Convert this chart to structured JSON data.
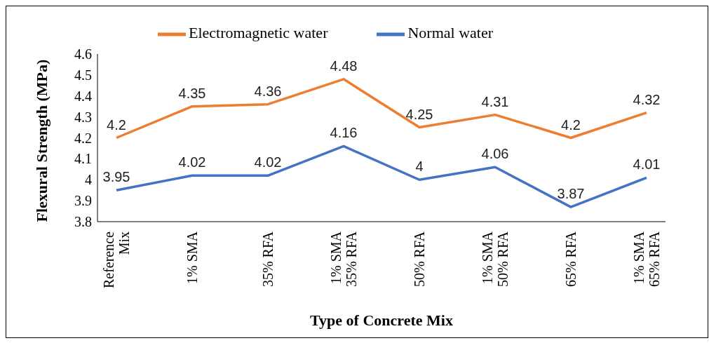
{
  "chart_data": {
    "type": "line",
    "xlabel": "Type of Concrete Mix",
    "ylabel": "Flexural Strength (MPa)",
    "categories": [
      "Reference Mix",
      "1% SMA",
      "35% RFA",
      "1% SMA 35% RFA",
      "50% RFA",
      "1% SMA 50% RFA",
      "65% RFA",
      "1% SMA 65% RFA"
    ],
    "series": [
      {
        "name": "Normal water",
        "color": "#4472c4",
        "values": [
          3.95,
          4.02,
          4.02,
          4.16,
          4,
          4.06,
          3.87,
          4.01
        ]
      },
      {
        "name": "Electromagnetic water",
        "color": "#ed7d31",
        "values": [
          4.2,
          4.35,
          4.36,
          4.48,
          4.25,
          4.31,
          4.2,
          4.32
        ]
      }
    ],
    "ylim": [
      3.8,
      4.6
    ],
    "yticks": [
      3.8,
      3.9,
      4,
      4.1,
      4.2,
      4.3,
      4.4,
      4.5,
      4.6
    ],
    "grid": false,
    "legend": "top",
    "marker": "none",
    "line_style": "solid",
    "data_labels": true
  }
}
